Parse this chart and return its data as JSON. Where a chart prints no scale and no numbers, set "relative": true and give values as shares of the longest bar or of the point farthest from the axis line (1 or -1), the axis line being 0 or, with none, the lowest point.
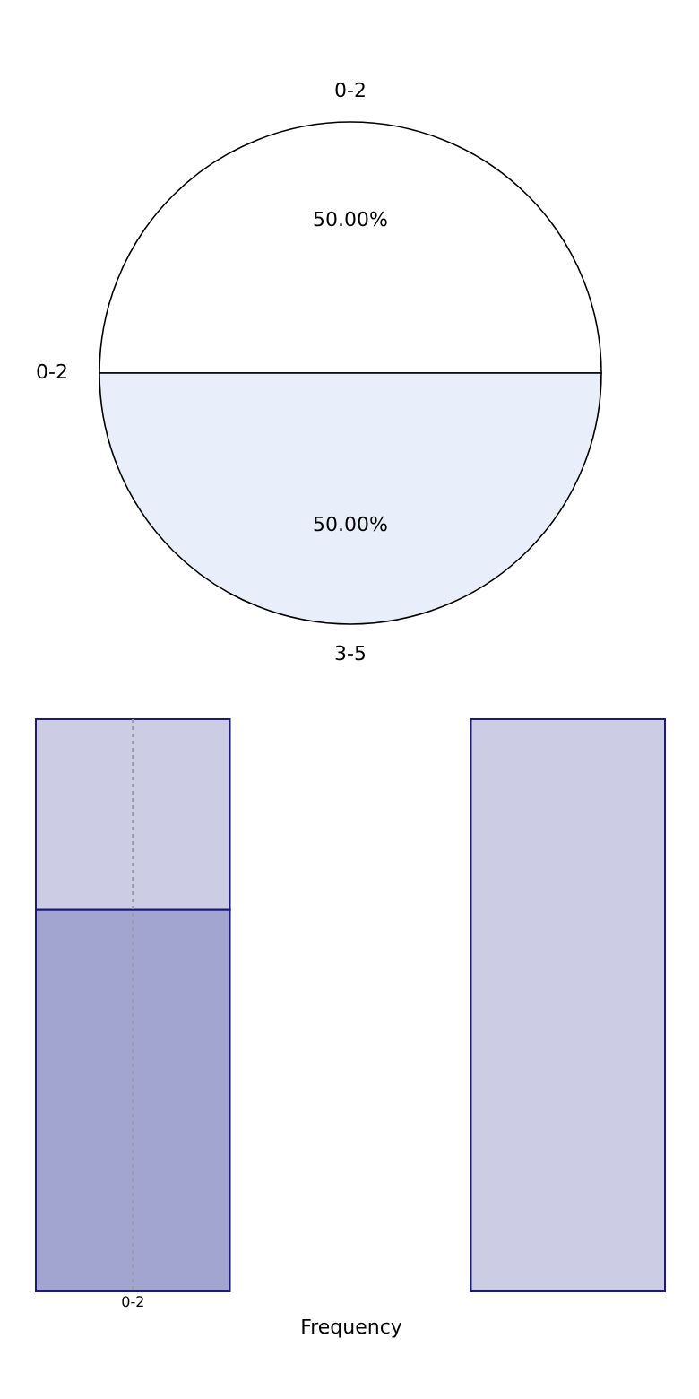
{
  "chart_data": [
    {
      "type": "pie",
      "categories": [
        "0-2",
        "3-5"
      ],
      "values": [
        50,
        50
      ],
      "colors": [
        "#ffffff",
        "#e8eefa"
      ],
      "value_labels": [
        "50.00%",
        "50.00%"
      ],
      "annotations": [
        "0-2"
      ]
    },
    {
      "type": "bar",
      "stacked": true,
      "relative": true,
      "categories": [
        "0-2",
        null
      ],
      "xlabel": "Frequency",
      "tick_labels": "x",
      "ref_lines": [
        {
          "axis": "x",
          "value": "0-2",
          "color": "#9a9aaa",
          "line_style": "dotted"
        }
      ],
      "series": [
        {
          "color": "#a3a5d1",
          "values": [
            0.667,
            null
          ]
        },
        {
          "color": "#cccde4",
          "values": [
            0.333,
            1
          ]
        }
      ]
    }
  ]
}
